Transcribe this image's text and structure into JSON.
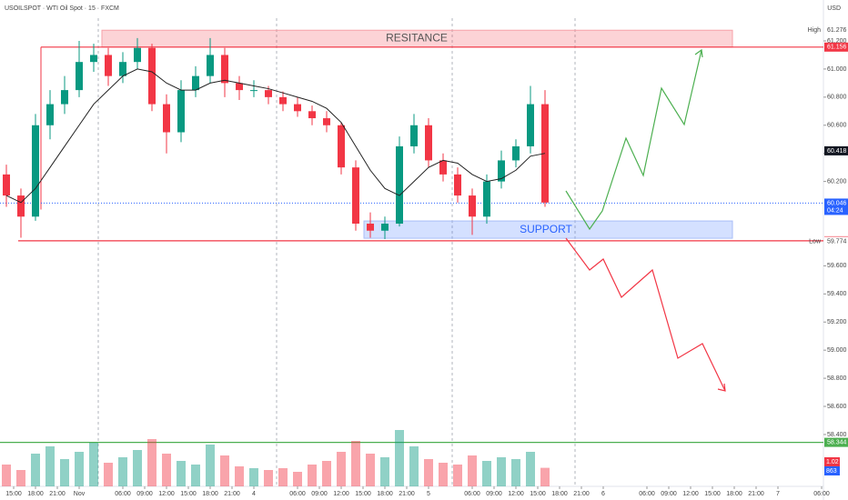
{
  "header": {
    "title": "USOILSPOT · WTI Oil Spot · 15 · FXCM",
    "currency": "USD"
  },
  "chart_data": {
    "type": "candlestick",
    "x": [
      -1,
      1,
      3,
      5,
      7,
      9,
      11,
      13,
      15,
      17,
      19,
      21,
      23,
      25,
      27,
      29,
      31,
      33,
      35,
      37,
      39,
      41,
      43,
      45,
      47,
      49,
      51,
      53,
      55,
      57,
      59,
      61,
      63,
      65,
      67,
      69,
      71,
      73
    ],
    "open": [
      60.25,
      60.1,
      59.95,
      60.6,
      60.75,
      60.85,
      61.05,
      61.1,
      60.95,
      61.05,
      61.15,
      60.75,
      60.55,
      60.85,
      60.95,
      61.1,
      60.9,
      60.85,
      60.85,
      60.8,
      60.75,
      60.7,
      60.65,
      60.6,
      60.3,
      59.9,
      59.85,
      59.9,
      60.45,
      60.6,
      60.35,
      60.25,
      60.1,
      59.95,
      60.2,
      60.35,
      60.45,
      60.75
    ],
    "high": [
      60.32,
      60.15,
      60.68,
      60.85,
      60.95,
      61.2,
      61.18,
      61.15,
      61.12,
      61.22,
      61.18,
      60.82,
      60.92,
      61.02,
      61.22,
      61.15,
      60.95,
      60.92,
      60.88,
      60.84,
      60.8,
      60.74,
      60.7,
      60.62,
      60.35,
      59.98,
      59.95,
      60.52,
      60.68,
      60.65,
      60.4,
      60.3,
      60.15,
      60.25,
      60.42,
      60.5,
      60.88,
      60.85
    ],
    "low": [
      60.02,
      59.8,
      59.92,
      60.5,
      60.68,
      60.8,
      60.98,
      60.88,
      60.9,
      61.0,
      60.7,
      60.4,
      60.48,
      60.8,
      60.9,
      60.8,
      60.78,
      60.8,
      60.75,
      60.7,
      60.66,
      60.6,
      60.55,
      60.25,
      59.85,
      59.8,
      59.79,
      59.88,
      60.4,
      60.3,
      60.2,
      60.05,
      59.82,
      59.9,
      60.15,
      60.3,
      60.4,
      60.02
    ],
    "close": [
      60.1,
      59.95,
      60.6,
      60.75,
      60.85,
      61.05,
      61.1,
      60.95,
      61.05,
      61.15,
      60.75,
      60.55,
      60.85,
      60.95,
      61.1,
      60.9,
      60.85,
      60.85,
      60.8,
      60.75,
      60.7,
      60.65,
      60.6,
      60.3,
      59.9,
      59.85,
      59.9,
      60.45,
      60.6,
      60.35,
      60.25,
      60.1,
      59.95,
      60.2,
      60.35,
      60.45,
      60.75,
      60.05
    ],
    "ma": [
      60.1,
      60.05,
      60.15,
      60.3,
      60.45,
      60.6,
      60.75,
      60.85,
      60.95,
      61.0,
      60.98,
      60.9,
      60.85,
      60.85,
      60.9,
      60.92,
      60.9,
      60.88,
      60.86,
      60.83,
      60.8,
      60.77,
      60.72,
      60.62,
      60.45,
      60.28,
      60.15,
      60.1,
      60.2,
      60.3,
      60.35,
      60.33,
      60.25,
      60.2,
      60.22,
      60.28,
      60.38,
      60.4
    ],
    "volume": [
      1.2,
      0.9,
      1.8,
      2.2,
      1.5,
      1.9,
      2.4,
      1.3,
      1.6,
      2.0,
      2.6,
      1.8,
      1.4,
      1.2,
      2.3,
      1.7,
      1.1,
      1.0,
      0.9,
      1.0,
      0.8,
      1.2,
      1.4,
      1.9,
      2.5,
      1.8,
      1.6,
      3.1,
      2.2,
      1.5,
      1.3,
      1.2,
      1.7,
      1.4,
      1.6,
      1.5,
      1.9,
      1.02
    ],
    "volume_ylim": [
      0,
      4
    ],
    "up_color": "#089981",
    "down_color": "#f23645",
    "ma_color": "#222222",
    "xlim": [
      -1.875,
      111.25
    ],
    "xticks": [
      {
        "value": 0,
        "label": "15:00"
      },
      {
        "value": 3,
        "label": "18:00"
      },
      {
        "value": 6,
        "label": "21:00"
      },
      {
        "value": 9,
        "label": "Nov"
      },
      {
        "value": 15,
        "label": "06:00"
      },
      {
        "value": 18,
        "label": "09:00"
      },
      {
        "value": 21,
        "label": "12:00"
      },
      {
        "value": 24,
        "label": "15:00"
      },
      {
        "value": 27,
        "label": "18:00"
      },
      {
        "value": 30,
        "label": "21:00"
      },
      {
        "value": 33,
        "label": "4"
      },
      {
        "value": 39,
        "label": "06:00"
      },
      {
        "value": 42,
        "label": "09:00"
      },
      {
        "value": 45,
        "label": "12:00"
      },
      {
        "value": 48,
        "label": "15:00"
      },
      {
        "value": 51,
        "label": "18:00"
      },
      {
        "value": 54,
        "label": "21:00"
      },
      {
        "value": 57,
        "label": "5"
      },
      {
        "value": 63,
        "label": "06:00"
      },
      {
        "value": 66,
        "label": "09:00"
      },
      {
        "value": 69,
        "label": "12:00"
      },
      {
        "value": 72,
        "label": "15:00"
      },
      {
        "value": 75,
        "label": "18:00"
      },
      {
        "value": 78,
        "label": "21:00"
      },
      {
        "value": 81,
        "label": "6"
      },
      {
        "value": 87,
        "label": "06:00"
      },
      {
        "value": 90,
        "label": "09:00"
      },
      {
        "value": 93,
        "label": "12:00"
      },
      {
        "value": 96,
        "label": "15:00"
      },
      {
        "value": 99,
        "label": "18:00"
      },
      {
        "value": 102,
        "label": "21:00"
      },
      {
        "value": 105,
        "label": "7"
      },
      {
        "value": 111,
        "label": "06:00"
      }
    ],
    "ylim": [
      58.031,
      61.491
    ],
    "yticks": [
      {
        "value": 61.2,
        "label": "61.200"
      },
      {
        "value": 61.0,
        "label": "61.000"
      },
      {
        "value": 60.8,
        "label": "60.800"
      },
      {
        "value": 60.6,
        "label": "60.600"
      },
      {
        "value": 60.4,
        "label": "60.400"
      },
      {
        "value": 60.2,
        "label": "60.200"
      },
      {
        "value": 59.6,
        "label": "59.600"
      },
      {
        "value": 59.4,
        "label": "59.400"
      },
      {
        "value": 59.2,
        "label": "59.200"
      },
      {
        "value": 59.0,
        "label": "59.000"
      },
      {
        "value": 58.8,
        "label": "58.800"
      },
      {
        "value": 58.6,
        "label": "58.600"
      },
      {
        "value": 58.4,
        "label": "58.400"
      }
    ],
    "resistance": {
      "label": "RESITANCE",
      "range": [
        61.156,
        61.276
      ]
    },
    "support": {
      "label": "SUPPORT",
      "range": [
        59.796,
        59.919
      ]
    },
    "price_tags": [
      {
        "value": 61.276,
        "color": "#ffffff",
        "note": "High"
      },
      {
        "value": 61.156,
        "color": "#f23645"
      },
      {
        "value": 60.418,
        "color": "#131722"
      },
      {
        "value": 60.046,
        "color": "#2962ff",
        "countdown": "04:24"
      },
      {
        "value": 59.778,
        "color": "#f23645"
      },
      {
        "value": 59.774,
        "color": "#ffffff",
        "note": "Low"
      },
      {
        "value": 58.344,
        "color": "#4caf50"
      }
    ],
    "volume_tags": [
      {
        "label": "1.02 K",
        "color": "#f23645"
      },
      {
        "label": "863",
        "color": "#2962ff"
      }
    ]
  }
}
